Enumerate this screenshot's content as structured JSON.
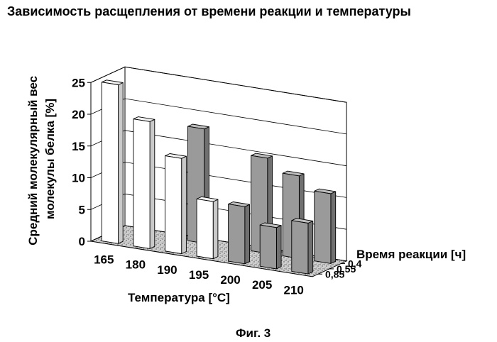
{
  "chart_data": {
    "type": "bar",
    "title": "Зависимость расщепления от времени реакции и температуры",
    "xlabel": "Температура [°C]",
    "ylabel": "Средний молекулярный вес молекулы белка [%]",
    "ylabel_lines": [
      "Средний молекулярный вес",
      "молекулы белка [%]"
    ],
    "zlabel": "Время реакции [ч]",
    "categories": [
      "165",
      "180",
      "190",
      "195",
      "200",
      "205",
      "210"
    ],
    "depth_categories": [
      "0,4",
      "0,55",
      "0,85"
    ],
    "yticks": [
      "0",
      "5",
      "10",
      "15",
      "20",
      "25"
    ],
    "ylim": [
      0,
      25
    ],
    "grid": true,
    "colors": {
      "white_bar": "#ffffff",
      "grey_bar": "#9a9a9a",
      "floor": "#c8c8c8"
    },
    "bars": [
      {
        "x": "165",
        "time": "0,85",
        "value": 25,
        "color": "white"
      },
      {
        "x": "180",
        "time": "0,85",
        "value": 20,
        "color": "white"
      },
      {
        "x": "190",
        "time": "0,85",
        "value": 15,
        "color": "white"
      },
      {
        "x": "190",
        "time": "0,4",
        "value": 18,
        "color": "grey"
      },
      {
        "x": "195",
        "time": "0,85",
        "value": 9,
        "color": "white"
      },
      {
        "x": "200",
        "time": "0,4",
        "value": 15,
        "color": "grey"
      },
      {
        "x": "200",
        "time": "0,85",
        "value": 9,
        "color": "grey"
      },
      {
        "x": "205",
        "time": "0,4",
        "value": 13,
        "color": "grey"
      },
      {
        "x": "205",
        "time": "0,85",
        "value": 6.5,
        "color": "grey"
      },
      {
        "x": "210",
        "time": "0,4",
        "value": 11,
        "color": "grey"
      },
      {
        "x": "210",
        "time": "0,85",
        "value": 8,
        "color": "grey"
      }
    ]
  },
  "caption": "Фиг. 3"
}
